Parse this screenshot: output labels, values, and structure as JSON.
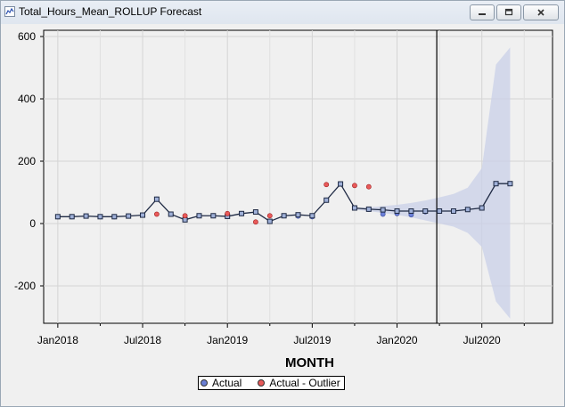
{
  "window": {
    "title": "Total_Hours_Mean_ROLLUP Forecast",
    "minimize_icon": "minimize-icon",
    "maximize_icon": "maximize-icon",
    "close_icon": "close-icon"
  },
  "chart_data": {
    "type": "line",
    "title": "",
    "xlabel": "MONTH",
    "ylabel": "",
    "ylim": [
      -320,
      620
    ],
    "xlim": [
      "2017-12",
      "2020-12"
    ],
    "yticks": [
      -200,
      0,
      200,
      400,
      600
    ],
    "xticks": [
      {
        "label": "Jan2018",
        "month": "2018-01"
      },
      {
        "label": "Jul2018",
        "month": "2018-07"
      },
      {
        "label": "Jan2019",
        "month": "2019-01"
      },
      {
        "label": "Jul2019",
        "month": "2019-07"
      },
      {
        "label": "Jan2020",
        "month": "2020-01"
      },
      {
        "label": "Jul2020",
        "month": "2020-07"
      }
    ],
    "minor_ticks": [
      "2018-04",
      "2018-10",
      "2019-04",
      "2019-10",
      "2020-04",
      "2020-10"
    ],
    "grid": true,
    "forecast_start": "2020-04",
    "months": [
      "2018-01",
      "2018-02",
      "2018-03",
      "2018-04",
      "2018-05",
      "2018-06",
      "2018-07",
      "2018-08",
      "2018-09",
      "2018-10",
      "2018-11",
      "2018-12",
      "2019-01",
      "2019-02",
      "2019-03",
      "2019-04",
      "2019-05",
      "2019-06",
      "2019-07",
      "2019-08",
      "2019-09",
      "2019-10",
      "2019-11",
      "2019-12",
      "2020-01",
      "2020-02",
      "2020-03",
      "2020-04",
      "2020-05",
      "2020-06",
      "2020-07",
      "2020-08",
      "2020-09",
      "2020-10",
      "2020-11"
    ],
    "predicted": [
      22,
      22,
      24,
      22,
      22,
      24,
      27,
      78,
      30,
      12,
      25,
      25,
      23,
      32,
      37,
      7,
      25,
      28,
      25,
      75,
      127,
      50,
      46,
      44,
      40,
      40,
      40,
      40,
      40,
      45,
      50,
      128,
      128
    ],
    "confidence_band": {
      "months": [
        "2019-10",
        "2019-11",
        "2019-12",
        "2020-01",
        "2020-02",
        "2020-03",
        "2020-04",
        "2020-05",
        "2020-06",
        "2020-07",
        "2020-08",
        "2020-09"
      ],
      "upper": [
        50,
        52,
        56,
        60,
        66,
        74,
        84,
        95,
        115,
        178,
        510,
        565
      ],
      "lower": [
        44,
        40,
        34,
        28,
        20,
        10,
        0,
        -10,
        -30,
        -75,
        -250,
        -305
      ]
    },
    "series": [
      {
        "name": "Actual",
        "color": "#6a7fd6",
        "points": [
          {
            "month": "2018-01",
            "value": 22
          },
          {
            "month": "2018-02",
            "value": 22
          },
          {
            "month": "2018-03",
            "value": 24
          },
          {
            "month": "2018-04",
            "value": 22
          },
          {
            "month": "2018-05",
            "value": 22
          },
          {
            "month": "2018-06",
            "value": 24
          },
          {
            "month": "2018-07",
            "value": 27
          },
          {
            "month": "2018-08",
            "value": 78
          },
          {
            "month": "2018-09",
            "value": 30
          },
          {
            "month": "2018-10",
            "value": 12
          },
          {
            "month": "2018-11",
            "value": 25
          },
          {
            "month": "2018-12",
            "value": 25
          },
          {
            "month": "2019-01",
            "value": 23
          },
          {
            "month": "2019-02",
            "value": 32
          },
          {
            "month": "2019-03",
            "value": 37
          },
          {
            "month": "2019-04",
            "value": 7
          },
          {
            "month": "2019-05",
            "value": 25
          },
          {
            "month": "2019-06",
            "value": 24
          },
          {
            "month": "2019-07",
            "value": 22
          },
          {
            "month": "2019-08",
            "value": 75
          },
          {
            "month": "2019-09",
            "value": 127
          },
          {
            "month": "2019-10",
            "value": 50
          },
          {
            "month": "2019-11",
            "value": 46
          },
          {
            "month": "2019-12",
            "value": 30
          },
          {
            "month": "2020-01",
            "value": 32
          },
          {
            "month": "2020-02",
            "value": 28
          },
          {
            "month": "2020-03",
            "value": 38
          }
        ]
      },
      {
        "name": "Actual - Outlier",
        "color": "#e85a5a",
        "points": [
          {
            "month": "2018-08",
            "value": 30
          },
          {
            "month": "2018-10",
            "value": 25
          },
          {
            "month": "2019-01",
            "value": 32
          },
          {
            "month": "2019-03",
            "value": 5
          },
          {
            "month": "2019-04",
            "value": 25
          },
          {
            "month": "2019-08",
            "value": 125
          },
          {
            "month": "2019-10",
            "value": 122
          },
          {
            "month": "2019-11",
            "value": 118
          }
        ]
      }
    ],
    "legend": {
      "placement": "bottom"
    }
  }
}
